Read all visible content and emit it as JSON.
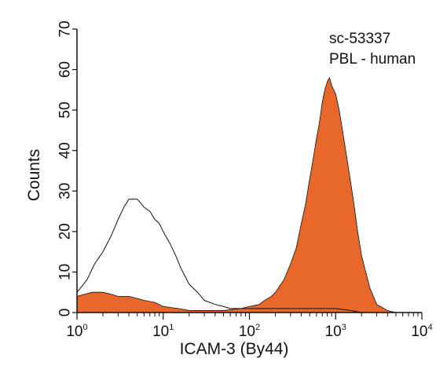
{
  "chart_data": {
    "type": "area",
    "xlabel": "ICAM-3 (By44)",
    "ylabel": "Counts",
    "xscale": "log",
    "xlim": [
      1,
      10000
    ],
    "ylim": [
      0,
      70
    ],
    "x_ticks": [
      {
        "value": 1,
        "base": "10",
        "exp": "0"
      },
      {
        "value": 10,
        "base": "10",
        "exp": "1"
      },
      {
        "value": 100,
        "base": "10",
        "exp": "2"
      },
      {
        "value": 1000,
        "base": "10",
        "exp": "3"
      },
      {
        "value": 10000,
        "base": "10",
        "exp": "4"
      }
    ],
    "y_ticks": [
      0,
      10,
      20,
      30,
      40,
      50,
      60,
      70
    ],
    "annotations": [
      "sc-53337",
      "PBL - human"
    ],
    "grid": false,
    "series": [
      {
        "style": "outline",
        "color": "#111111",
        "x": [
          1,
          1.3,
          1.6,
          2,
          2.5,
          3,
          3.5,
          4,
          4.5,
          5,
          5.5,
          6,
          7,
          8,
          9,
          10,
          12,
          14,
          16,
          20,
          25,
          30,
          40,
          50,
          60,
          80,
          100,
          150,
          200,
          300,
          400,
          500,
          700,
          1000,
          1500,
          2000,
          3000,
          5000,
          10000
        ],
        "y": [
          5,
          8,
          12,
          15,
          19,
          23,
          26,
          28,
          28,
          28,
          27,
          26,
          25,
          23,
          22,
          20,
          17,
          14,
          11,
          7,
          5,
          3,
          2,
          1.5,
          1,
          1,
          1,
          1,
          1,
          1,
          1,
          1,
          1,
          1,
          0.5,
          0,
          0,
          0,
          0
        ]
      },
      {
        "style": "filled",
        "color": "#e8682c",
        "x": [
          1,
          1.5,
          2,
          2.5,
          3,
          4,
          5,
          6,
          8,
          10,
          15,
          20,
          30,
          50,
          80,
          100,
          130,
          150,
          180,
          200,
          250,
          300,
          350,
          400,
          450,
          500,
          550,
          600,
          650,
          700,
          750,
          800,
          850,
          900,
          1000,
          1100,
          1200,
          1400,
          1600,
          1800,
          2000,
          2500,
          3000,
          4000,
          5000,
          10000
        ],
        "y": [
          4,
          5,
          5,
          4.5,
          4,
          4,
          3.5,
          3,
          2.5,
          1.5,
          1,
          0.5,
          0.5,
          0.5,
          1,
          1.5,
          2,
          3,
          4,
          5,
          8,
          12,
          16,
          22,
          27,
          33,
          38,
          43,
          47,
          52,
          55,
          57,
          58,
          56,
          54,
          50,
          45,
          36,
          28,
          20,
          14,
          6,
          2,
          0.5,
          0,
          0
        ]
      }
    ]
  }
}
